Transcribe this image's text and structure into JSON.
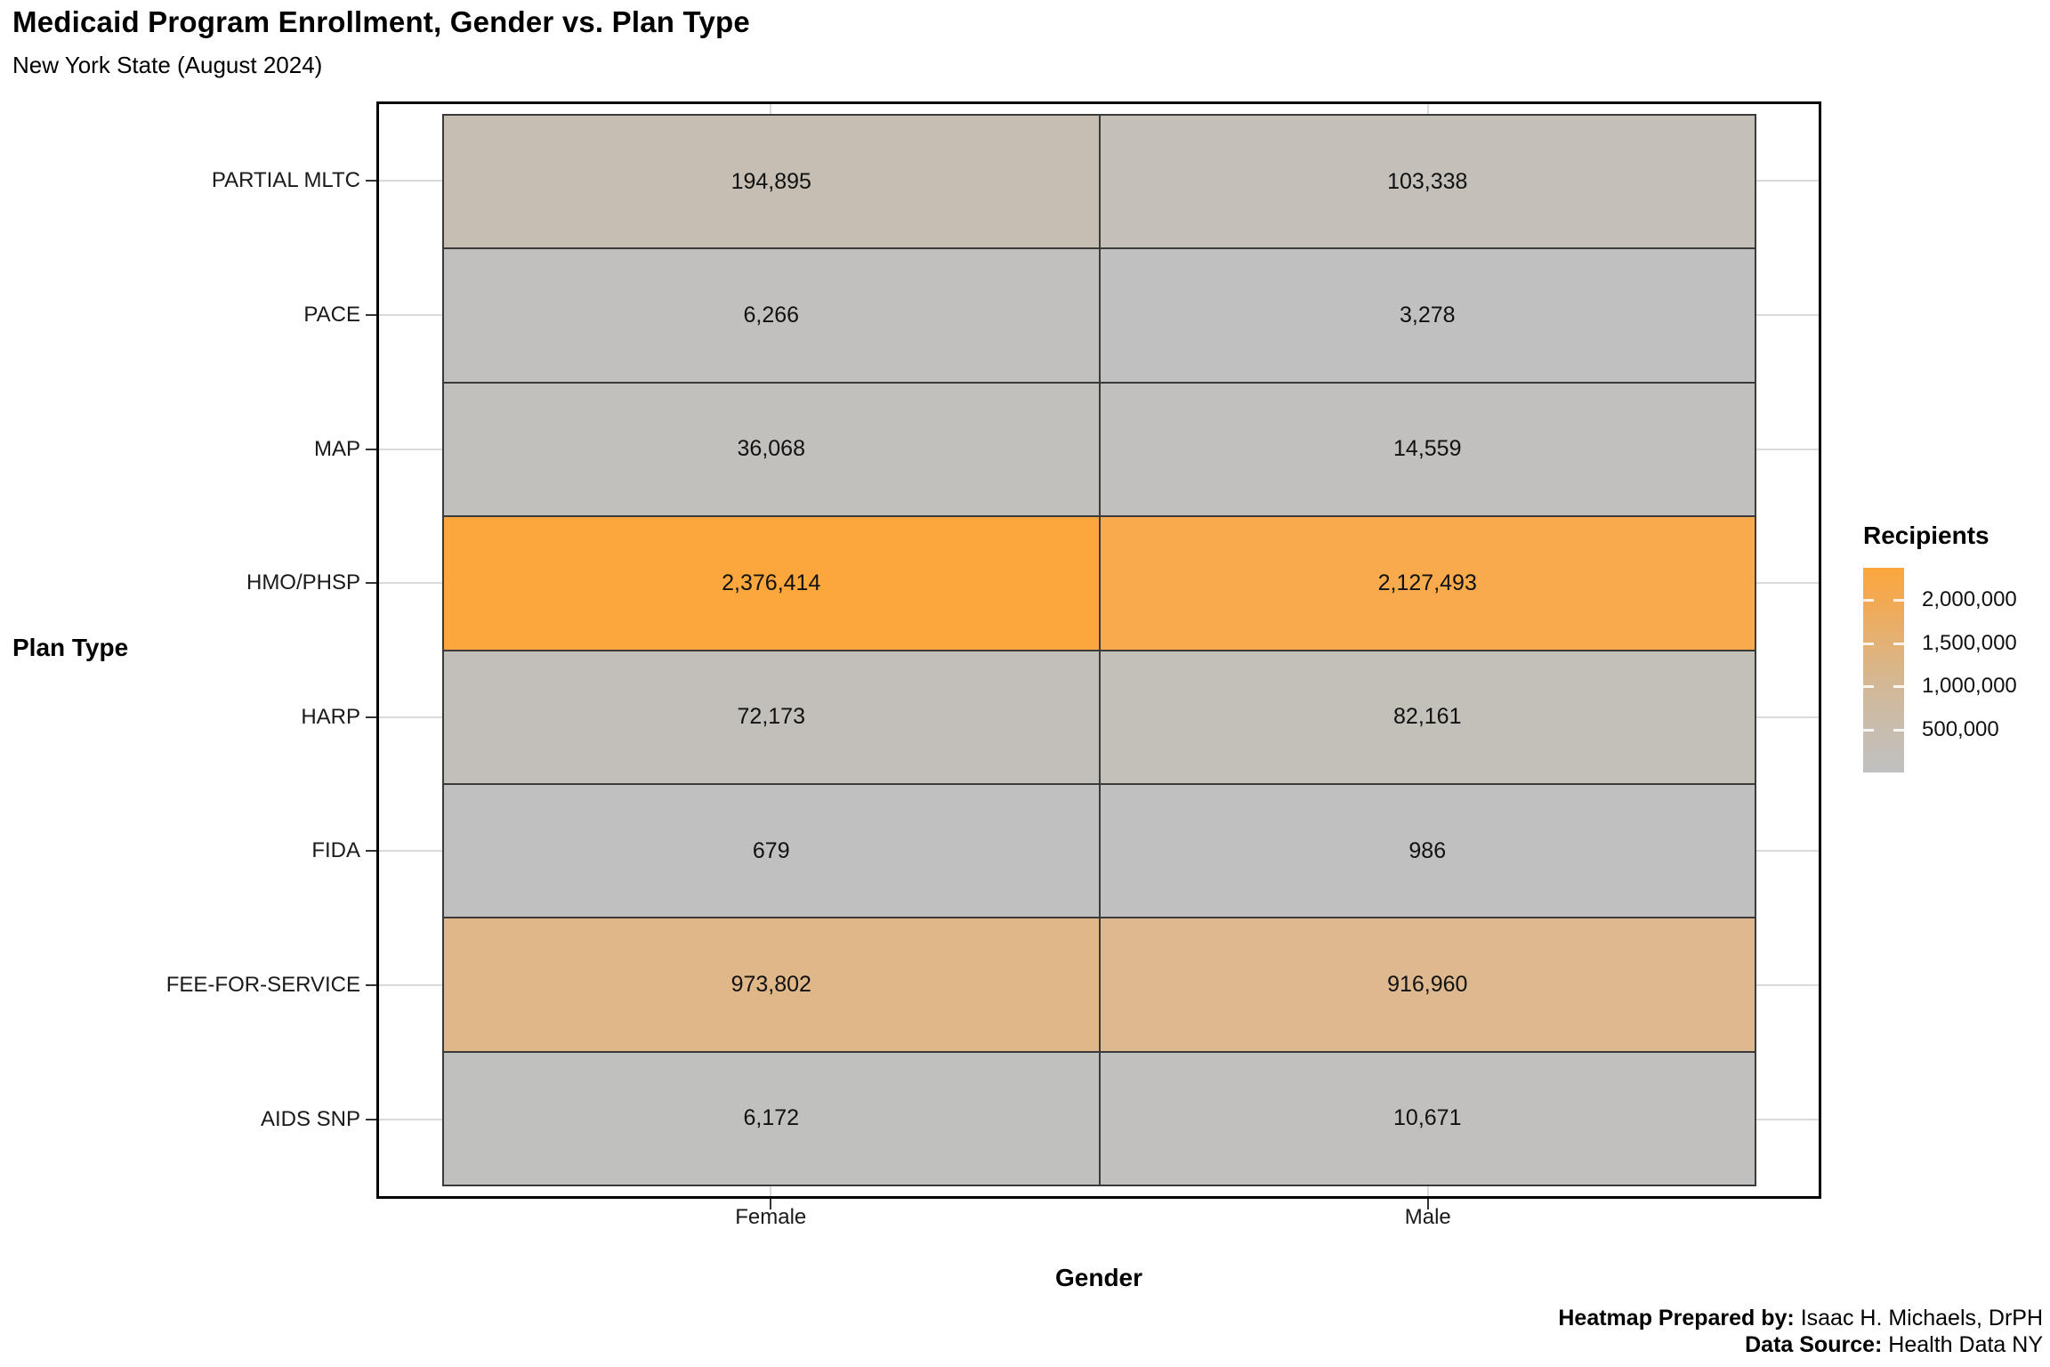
{
  "header": {
    "title": "Medicaid Program Enrollment, Gender vs. Plan Type",
    "subtitle": "New York State (August 2024)"
  },
  "chart_data": {
    "type": "heatmap",
    "title": "Medicaid Program Enrollment, Gender vs. Plan Type",
    "subtitle": "New York State (August 2024)",
    "xlabel": "Gender",
    "ylabel": "Plan Type",
    "columns": [
      "Female",
      "Male"
    ],
    "rows": [
      "PARTIAL MLTC",
      "PACE",
      "MAP",
      "HMO/PHSP",
      "HARP",
      "FIDA",
      "FEE-FOR-SERVICE",
      "AIDS SNP"
    ],
    "values": [
      [
        194895,
        103338
      ],
      [
        6266,
        3278
      ],
      [
        36068,
        14559
      ],
      [
        2376414,
        2127493
      ],
      [
        72173,
        82161
      ],
      [
        679,
        986
      ],
      [
        973802,
        916960
      ],
      [
        6172,
        10671
      ]
    ],
    "labels": [
      [
        "194,895",
        "103,338"
      ],
      [
        "6,266",
        "3,278"
      ],
      [
        "36,068",
        "14,559"
      ],
      [
        "2,376,414",
        "2,127,493"
      ],
      [
        "72,173",
        "82,161"
      ],
      [
        "679",
        "986"
      ],
      [
        "973,802",
        "916,960"
      ],
      [
        "6,172",
        "10,671"
      ]
    ],
    "fills": [
      [
        "#C7BEB3",
        "#C4BFB8"
      ],
      [
        "#C1C0BF",
        "#C0C0C0"
      ],
      [
        "#C2C0BC",
        "#C1C0BE"
      ],
      [
        "#FCA73D",
        "#F8AA4C"
      ],
      [
        "#C2BFBA",
        "#C3BFB9"
      ],
      [
        "#C0C0C0",
        "#C0C0C0"
      ],
      [
        "#E0B789",
        "#DEB88E"
      ],
      [
        "#C0C0BF",
        "#C1C0BE"
      ]
    ],
    "grid": "on",
    "legend_position": "right",
    "legend": {
      "title": "Recipients",
      "tick_labels": [
        "2,000,000",
        "1,500,000",
        "1,000,000",
        "500,000"
      ],
      "tick_values": [
        2000000,
        1500000,
        1000000,
        500000
      ],
      "min": 679,
      "max": 2376414,
      "color_low": "#C0C0C0",
      "color_high": "#FCA73D",
      "gradient_stops": [
        "#FCA73D 0%",
        "#F2A952 16%",
        "#E3B176 37%",
        "#D3B897 58%",
        "#C8BDAE 79%",
        "#C0C0C0 100%"
      ]
    },
    "style": {
      "cell_border": "#3A3A3A",
      "panel_border": "#000000",
      "gridline": "#D9D9D9",
      "value_text": "#111111"
    }
  },
  "footer": {
    "prepared_by_label": "Heatmap Prepared by:",
    "prepared_by_value": "Isaac H. Michaels, DrPH",
    "source_label": "Data Source:",
    "source_value": "Health Data NY"
  }
}
